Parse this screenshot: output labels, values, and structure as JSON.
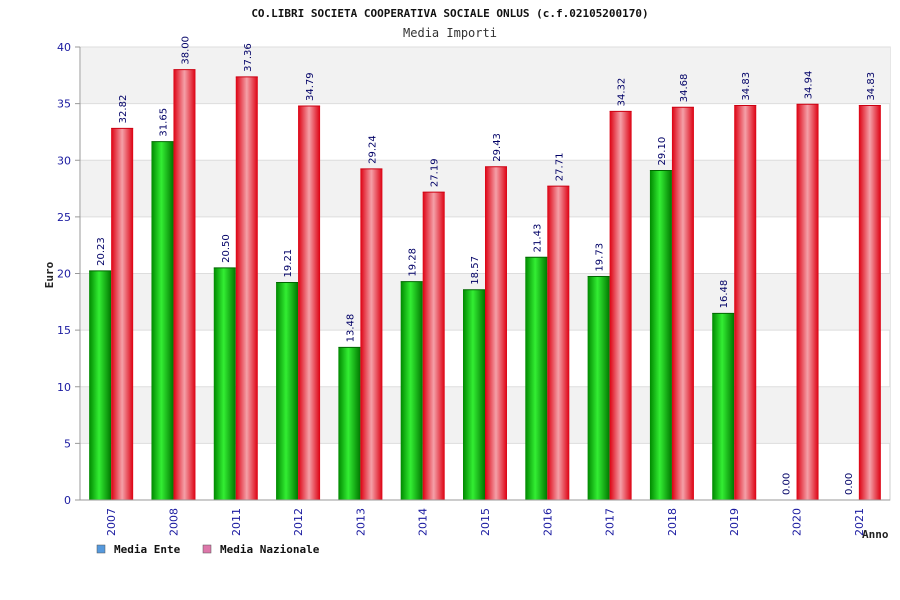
{
  "chart_data": {
    "type": "bar",
    "title": "CO.LIBRI SOCIETA COOPERATIVA SOCIALE ONLUS (c.f.02105200170)",
    "subtitle": "Media Importi",
    "ylabel": "Euro",
    "xlabel": "Anno",
    "ylim": [
      0,
      40
    ],
    "yticks": [
      0,
      5,
      10,
      15,
      20,
      25,
      30,
      35,
      40
    ],
    "grid": true,
    "legend_position": "bottom-left",
    "categories": [
      "2007",
      "2008",
      "2011",
      "2012",
      "2013",
      "2014",
      "2015",
      "2016",
      "2017",
      "2018",
      "2019",
      "2020",
      "2021"
    ],
    "series": [
      {
        "name": "Media Ente",
        "color": "#00b400",
        "legend_color": "#5599dd",
        "values": [
          20.23,
          31.65,
          20.5,
          19.21,
          13.48,
          19.28,
          18.57,
          21.43,
          19.73,
          29.1,
          16.48,
          0.0,
          0.0
        ],
        "labels": [
          "20.23",
          "31.65",
          "20.50",
          "19.21",
          "13.48",
          "19.28",
          "18.57",
          "21.43",
          "19.73",
          "29.10",
          "16.48",
          "0.00",
          "0.00"
        ]
      },
      {
        "name": "Media Nazionale",
        "color": "#ee1122",
        "legend_color": "#dd77aa",
        "values": [
          32.82,
          38.0,
          37.36,
          34.79,
          29.24,
          27.19,
          29.43,
          27.71,
          34.32,
          34.68,
          34.83,
          34.94,
          34.83
        ],
        "labels": [
          "32.82",
          "38.00",
          "37.36",
          "34.79",
          "29.24",
          "27.19",
          "29.43",
          "27.71",
          "34.32",
          "34.68",
          "34.83",
          "34.94",
          "34.83"
        ]
      }
    ]
  }
}
